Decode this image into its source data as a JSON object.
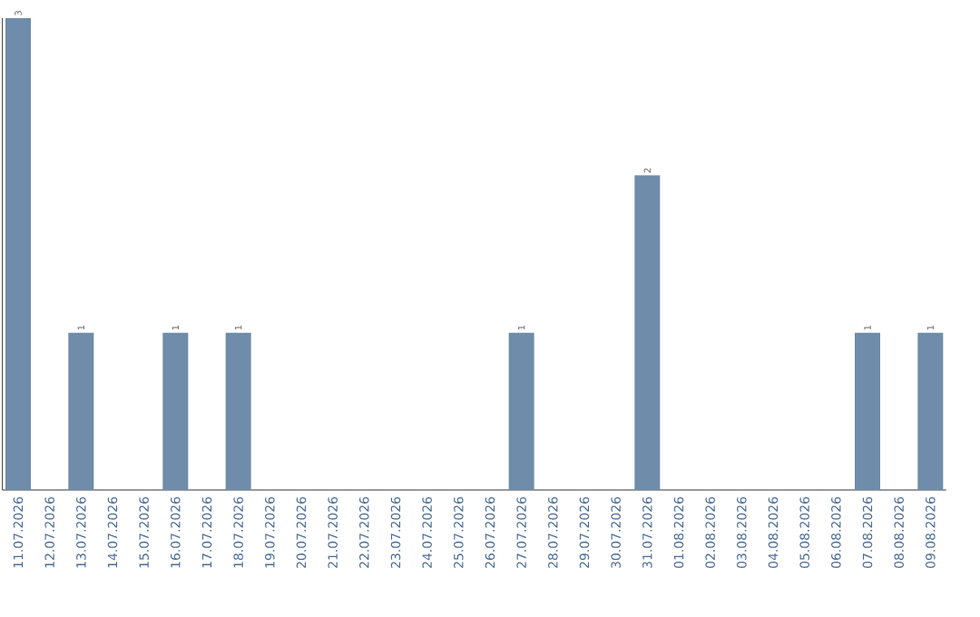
{
  "chart_data": {
    "type": "bar",
    "categories": [
      "11.07.2026",
      "12.07.2026",
      "13.07.2026",
      "14.07.2026",
      "15.07.2026",
      "16.07.2026",
      "17.07.2026",
      "18.07.2026",
      "19.07.2026",
      "20.07.2026",
      "21.07.2026",
      "22.07.2026",
      "23.07.2026",
      "24.07.2026",
      "25.07.2026",
      "26.07.2026",
      "27.07.2026",
      "28.07.2026",
      "29.07.2026",
      "30.07.2026",
      "31.07.2026",
      "01.08.2026",
      "02.08.2026",
      "03.08.2026",
      "04.08.2026",
      "05.08.2026",
      "06.08.2026",
      "07.08.2026",
      "08.08.2026",
      "09.08.2026"
    ],
    "values": [
      3,
      0,
      1,
      0,
      0,
      1,
      0,
      1,
      0,
      0,
      0,
      0,
      0,
      0,
      0,
      0,
      1,
      0,
      0,
      0,
      2,
      0,
      0,
      0,
      0,
      0,
      0,
      1,
      0,
      1
    ],
    "value_labels": [
      "3",
      null,
      "1",
      null,
      null,
      "1",
      null,
      "1",
      null,
      null,
      null,
      null,
      null,
      null,
      null,
      null,
      "1",
      null,
      null,
      null,
      "2",
      null,
      null,
      null,
      null,
      null,
      null,
      "1",
      null,
      "1"
    ],
    "color": "#6f8caa"
  }
}
